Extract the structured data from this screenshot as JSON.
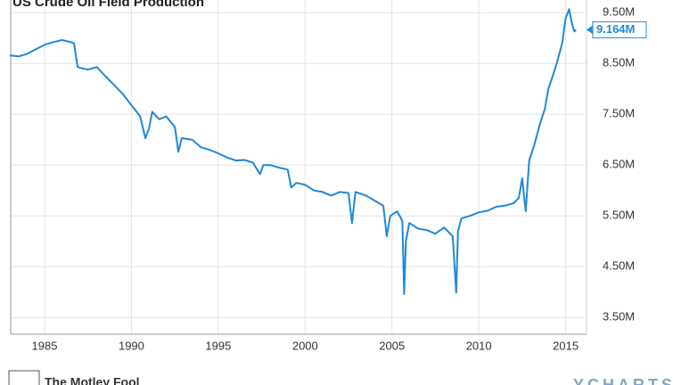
{
  "chart_data": {
    "type": "line",
    "title": "US Crude Oil Field Production",
    "source": "The Motley Fool",
    "brand": "YCHARTS",
    "x": [
      1983.0,
      1983.5,
      1984.0,
      1984.5,
      1985.0,
      1985.5,
      1986.0,
      1986.4,
      1986.7,
      1986.9,
      1987.2,
      1987.5,
      1988.0,
      1988.5,
      1989.0,
      1989.5,
      1990.0,
      1990.5,
      1990.8,
      1991.0,
      1991.2,
      1991.6,
      1992.0,
      1992.5,
      1992.7,
      1992.9,
      1993.5,
      1994.0,
      1994.5,
      1995.0,
      1995.5,
      1996.0,
      1996.5,
      1997.0,
      1997.4,
      1997.6,
      1998.0,
      1998.5,
      1999.0,
      1999.2,
      1999.5,
      2000.0,
      2000.5,
      2001.0,
      2001.5,
      2002.0,
      2002.5,
      2002.7,
      2002.9,
      2003.5,
      2004.0,
      2004.5,
      2004.7,
      2004.9,
      2005.3,
      2005.6,
      2005.7,
      2005.8,
      2006.0,
      2006.5,
      2007.0,
      2007.5,
      2008.0,
      2008.5,
      2008.7,
      2008.8,
      2009.0,
      2009.5,
      2010.0,
      2010.5,
      2011.0,
      2011.5,
      2012.0,
      2012.3,
      2012.5,
      2012.6,
      2012.7,
      2012.9,
      2013.2,
      2013.5,
      2013.8,
      2014.0,
      2014.3,
      2014.5,
      2014.8,
      2015.0,
      2015.2,
      2015.35,
      2015.5,
      2015.6
    ],
    "series": [
      {
        "name": "US Crude Oil Field Production",
        "color": "#1f88d8",
        "values": [
          8.66,
          8.64,
          8.69,
          8.78,
          8.87,
          8.92,
          8.96,
          8.93,
          8.9,
          8.43,
          8.4,
          8.38,
          8.43,
          8.25,
          8.08,
          7.9,
          7.68,
          7.46,
          7.03,
          7.2,
          7.55,
          7.4,
          7.46,
          7.25,
          6.76,
          7.03,
          7.0,
          6.85,
          6.8,
          6.73,
          6.65,
          6.59,
          6.6,
          6.55,
          6.32,
          6.5,
          6.5,
          6.45,
          6.41,
          6.06,
          6.15,
          6.11,
          6.0,
          5.97,
          5.9,
          5.97,
          5.95,
          5.36,
          5.97,
          5.9,
          5.8,
          5.7,
          5.1,
          5.5,
          5.59,
          5.4,
          3.96,
          5.0,
          5.36,
          5.25,
          5.22,
          5.15,
          5.27,
          5.1,
          3.99,
          5.2,
          5.45,
          5.5,
          5.57,
          5.6,
          5.68,
          5.7,
          5.75,
          5.85,
          6.24,
          5.9,
          5.59,
          6.59,
          6.9,
          7.29,
          7.6,
          7.99,
          8.3,
          8.52,
          8.9,
          9.39,
          9.57,
          9.3,
          9.13,
          9.164
        ]
      }
    ],
    "end_label": {
      "value": 9.164,
      "label": "9.164M"
    },
    "xlim": [
      1983.05,
      2016.2
    ],
    "ylim": [
      3.17,
      9.75
    ],
    "xticks": [
      1985,
      1990,
      1995,
      2000,
      2005,
      2010,
      2015
    ],
    "yticks": [
      {
        "value": 3.5,
        "label": "3.50M"
      },
      {
        "value": 4.5,
        "label": "4.50M"
      },
      {
        "value": 5.5,
        "label": "5.50M"
      },
      {
        "value": 6.5,
        "label": "6.50M"
      },
      {
        "value": 7.5,
        "label": "7.50M"
      },
      {
        "value": 8.5,
        "label": "8.50M"
      },
      {
        "value": 9.5,
        "label": "9.50M"
      }
    ],
    "grid": true
  }
}
